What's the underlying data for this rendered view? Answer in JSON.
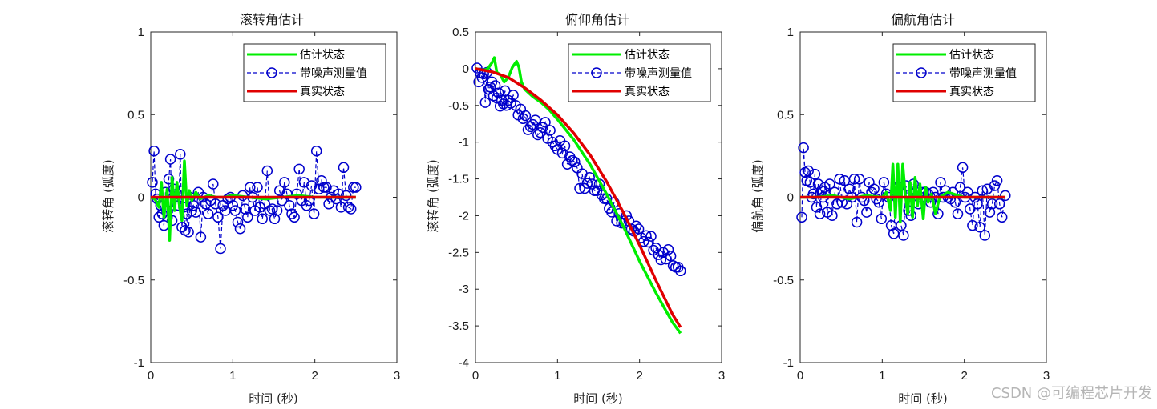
{
  "watermark": "CSDN @可编程芯片开发",
  "colors": {
    "estimate": "#00ee00",
    "measurement": "#0000cc",
    "truth": "#e00000",
    "axis": "#262626"
  },
  "chart_data": [
    {
      "type": "line",
      "title": "滚转角估计",
      "xlabel": "时间 (秒)",
      "ylabel": "滚转角 (弧度)",
      "xlim": [
        0,
        3
      ],
      "ylim": [
        -1,
        1
      ],
      "xticks": [
        0,
        1,
        2,
        3
      ],
      "yticks": [
        -1,
        -0.5,
        0,
        0.5,
        1
      ],
      "ytick_labels": [
        "-1",
        "-0.5",
        "0",
        "0.5",
        "1"
      ],
      "legend": [
        "估计状态",
        "带噪声测量值",
        "真实状态"
      ],
      "series": [
        {
          "name": "估计状态",
          "x": [
            0,
            0.05,
            0.1,
            0.13,
            0.16,
            0.2,
            0.23,
            0.26,
            0.29,
            0.32,
            0.35,
            0.38,
            0.41,
            0.44,
            0.47,
            0.5,
            0.55,
            0.6,
            0.7,
            0.8,
            0.9,
            1.0,
            1.2,
            1.4,
            1.6,
            1.8,
            2.0,
            2.2,
            2.4,
            2.5
          ],
          "values": [
            0,
            -0.01,
            -0.06,
            0.09,
            -0.12,
            0.05,
            -0.26,
            0.12,
            -0.08,
            0.09,
            -0.05,
            -0.14,
            0.22,
            -0.05,
            0.04,
            -0.02,
            0.03,
            -0.01,
            0.01,
            0,
            0,
            0.01,
            0,
            -0.01,
            0,
            0.01,
            0,
            0,
            0,
            0
          ]
        },
        {
          "name": "带噪声测量值",
          "x": [
            0.02,
            0.04,
            0.06,
            0.08,
            0.1,
            0.12,
            0.14,
            0.16,
            0.18,
            0.2,
            0.22,
            0.24,
            0.26,
            0.28,
            0.3,
            0.32,
            0.34,
            0.36,
            0.38,
            0.4,
            0.42,
            0.44,
            0.46,
            0.48,
            0.5,
            0.52,
            0.55,
            0.58,
            0.61,
            0.64,
            0.67,
            0.7,
            0.73,
            0.76,
            0.79,
            0.82,
            0.85,
            0.88,
            0.91,
            0.94,
            0.97,
            1.0,
            1.03,
            1.06,
            1.09,
            1.12,
            1.15,
            1.18,
            1.21,
            1.24,
            1.27,
            1.3,
            1.33,
            1.36,
            1.39,
            1.42,
            1.45,
            1.48,
            1.51,
            1.54,
            1.57,
            1.6,
            1.63,
            1.66,
            1.69,
            1.72,
            1.75,
            1.78,
            1.81,
            1.84,
            1.87,
            1.9,
            1.93,
            1.96,
            1.99,
            2.02,
            2.05,
            2.08,
            2.11,
            2.14,
            2.17,
            2.2,
            2.23,
            2.26,
            2.29,
            2.32,
            2.35,
            2.38,
            2.41,
            2.44,
            2.47,
            2.5
          ],
          "values": [
            0.09,
            0.28,
            0.02,
            -0.01,
            -0.12,
            -0.05,
            -0.1,
            -0.17,
            0.03,
            -0.08,
            0.11,
            0.23,
            -0.14,
            0.05,
            0,
            0.02,
            -0.05,
            0.26,
            -0.18,
            -0.06,
            -0.2,
            -0.1,
            -0.21,
            0.0,
            -0.08,
            -0.05,
            -0.09,
            0.03,
            -0.24,
            0.0,
            -0.04,
            -0.1,
            -0.02,
            0.08,
            -0.04,
            -0.12,
            -0.31,
            -0.05,
            -0.08,
            -0.01,
            0.0,
            -0.05,
            -0.08,
            -0.15,
            -0.19,
            0.01,
            -0.07,
            -0.12,
            0.06,
            0.0,
            -0.08,
            0.06,
            -0.06,
            -0.13,
            -0.04,
            0.16,
            -0.08,
            -0.07,
            -0.13,
            -0.08,
            0.04,
            -0.02,
            0.09,
            0.02,
            -0.05,
            -0.1,
            -0.12,
            0.02,
            0.17,
            -0.02,
            0.09,
            -0.05,
            -0.02,
            0.07,
            -0.1,
            0.28,
            0.05,
            0.1,
            0.06,
            0.06,
            -0.04,
            0.0,
            0.04,
            -0.01,
            0.02,
            -0.06,
            0.18,
            0.01,
            -0.06,
            -0.07,
            0.06,
            0.06
          ]
        },
        {
          "name": "真实状态",
          "x": [
            0,
            2.5
          ],
          "values": [
            0,
            0
          ]
        }
      ]
    },
    {
      "type": "line",
      "title": "俯仰角估计",
      "xlabel": "时间 (秒)",
      "ylabel": "滚转角 (弧度)",
      "xlim": [
        0,
        3
      ],
      "ylim": [
        -4,
        0.5
      ],
      "xticks": [
        0,
        1,
        2,
        3
      ],
      "yticks": [
        -4,
        -3.5,
        -3,
        -2.5,
        -2,
        -1.5,
        -1,
        -0.5,
        0,
        0.5
      ],
      "ytick_labels": [
        "-4",
        "-3.5",
        "-3",
        "-2.5",
        "-2",
        "-1.5",
        "-1",
        "-0.5",
        "0",
        "0.5"
      ],
      "legend": [
        "估计状态",
        "带噪声测量值",
        "真实状态"
      ],
      "series": [
        {
          "name": "估计状态",
          "x": [
            0,
            0.05,
            0.1,
            0.15,
            0.2,
            0.23,
            0.26,
            0.3,
            0.35,
            0.4,
            0.45,
            0.5,
            0.53,
            0.56,
            0.6,
            0.7,
            0.8,
            0.9,
            1.0,
            1.2,
            1.4,
            1.6,
            1.8,
            2.0,
            2.2,
            2.4,
            2.5
          ],
          "values": [
            0,
            -0.01,
            -0.02,
            0.0,
            0.08,
            0.15,
            -0.05,
            -0.08,
            -0.18,
            -0.12,
            0.02,
            0.1,
            0.02,
            -0.18,
            -0.28,
            -0.38,
            -0.46,
            -0.56,
            -0.69,
            -0.97,
            -1.31,
            -1.71,
            -2.14,
            -2.62,
            -3.05,
            -3.45,
            -3.6
          ]
        },
        {
          "name": "带噪声测量值",
          "x": [
            0.02,
            0.04,
            0.06,
            0.08,
            0.1,
            0.12,
            0.14,
            0.16,
            0.18,
            0.2,
            0.22,
            0.24,
            0.26,
            0.28,
            0.3,
            0.32,
            0.34,
            0.36,
            0.38,
            0.4,
            0.43,
            0.46,
            0.49,
            0.52,
            0.55,
            0.58,
            0.61,
            0.64,
            0.67,
            0.7,
            0.73,
            0.76,
            0.79,
            0.82,
            0.85,
            0.88,
            0.91,
            0.94,
            0.97,
            1.0,
            1.03,
            1.06,
            1.09,
            1.12,
            1.15,
            1.18,
            1.21,
            1.24,
            1.27,
            1.3,
            1.33,
            1.36,
            1.39,
            1.42,
            1.45,
            1.48,
            1.51,
            1.54,
            1.57,
            1.6,
            1.63,
            1.66,
            1.69,
            1.72,
            1.75,
            1.78,
            1.81,
            1.84,
            1.87,
            1.9,
            1.93,
            1.96,
            1.99,
            2.02,
            2.05,
            2.08,
            2.11,
            2.14,
            2.17,
            2.2,
            2.23,
            2.26,
            2.29,
            2.32,
            2.35,
            2.38,
            2.41,
            2.44,
            2.47,
            2.5
          ],
          "values": [
            0.01,
            -0.18,
            -0.06,
            -0.12,
            -0.07,
            -0.46,
            -0.05,
            -0.28,
            -0.25,
            -0.18,
            -0.37,
            -0.23,
            -0.4,
            -0.33,
            -0.51,
            -0.43,
            -0.48,
            -0.3,
            -0.5,
            -0.43,
            -0.47,
            -0.36,
            -0.5,
            -0.63,
            -0.55,
            -0.68,
            -0.64,
            -0.83,
            -0.79,
            -0.76,
            -0.7,
            -0.9,
            -0.87,
            -0.8,
            -0.73,
            -0.95,
            -0.84,
            -1.0,
            -1.05,
            -1.1,
            -0.98,
            -1.15,
            -1.05,
            -1.3,
            -1.2,
            -1.25,
            -1.27,
            -1.35,
            -1.63,
            -1.43,
            -1.63,
            -1.56,
            -1.48,
            -1.57,
            -1.66,
            -1.66,
            -1.57,
            -1.72,
            -1.77,
            -1.77,
            -1.9,
            -1.95,
            -1.82,
            -2.07,
            -1.97,
            -2.1,
            -2.1,
            -2.0,
            -2.07,
            -2.18,
            -2.21,
            -2.14,
            -2.18,
            -2.3,
            -2.35,
            -2.27,
            -2.36,
            -2.28,
            -2.47,
            -2.44,
            -2.53,
            -2.6,
            -2.5,
            -2.59,
            -2.46,
            -2.55,
            -2.68,
            -2.7,
            -2.7,
            -2.75
          ]
        },
        {
          "name": "真实状态",
          "x": [
            0,
            0.2,
            0.4,
            0.6,
            0.8,
            1.0,
            1.2,
            1.4,
            1.6,
            1.8,
            2.0,
            2.2,
            2.4,
            2.5
          ],
          "values": [
            0,
            -0.04,
            -0.12,
            -0.26,
            -0.43,
            -0.63,
            -0.88,
            -1.18,
            -1.54,
            -1.95,
            -2.4,
            -2.88,
            -3.34,
            -3.52
          ]
        }
      ]
    },
    {
      "type": "line",
      "title": "偏航角估计",
      "xlabel": "时间 (秒)",
      "ylabel": "偏航角 (弧度)",
      "xlim": [
        0,
        3
      ],
      "ylim": [
        -1,
        1
      ],
      "xticks": [
        0,
        1,
        2,
        3
      ],
      "yticks": [
        -1,
        -0.5,
        0,
        0.5,
        1
      ],
      "ytick_labels": [
        "-1",
        "-0.5",
        "0",
        "0.5",
        "1"
      ],
      "legend": [
        "估计状态",
        "带噪声测量值",
        "真实状态"
      ],
      "series": [
        {
          "name": "估计状态",
          "x": [
            0,
            0.2,
            0.4,
            0.6,
            0.8,
            1.0,
            1.05,
            1.1,
            1.13,
            1.16,
            1.19,
            1.22,
            1.25,
            1.28,
            1.31,
            1.34,
            1.37,
            1.4,
            1.43,
            1.46,
            1.5,
            1.53,
            1.56,
            1.6,
            1.65,
            1.7,
            1.8,
            2.0,
            2.2,
            2.4,
            2.5
          ],
          "values": [
            0,
            0,
            0.01,
            -0.01,
            0.01,
            0,
            0.03,
            -0.08,
            0.2,
            -0.12,
            0.2,
            -0.15,
            0.2,
            0.02,
            -0.1,
            0.09,
            -0.12,
            0.12,
            -0.05,
            0.08,
            -0.13,
            0.06,
            -0.03,
            0.02,
            -0.1,
            0.0,
            0.03,
            0.0,
            0.0,
            0.0,
            0.0
          ]
        },
        {
          "name": "带噪声测量值",
          "x": [
            0.02,
            0.04,
            0.06,
            0.08,
            0.1,
            0.12,
            0.14,
            0.16,
            0.18,
            0.2,
            0.22,
            0.24,
            0.26,
            0.28,
            0.3,
            0.33,
            0.36,
            0.39,
            0.42,
            0.45,
            0.48,
            0.51,
            0.54,
            0.57,
            0.6,
            0.63,
            0.66,
            0.69,
            0.72,
            0.75,
            0.78,
            0.81,
            0.84,
            0.87,
            0.9,
            0.93,
            0.96,
            0.99,
            1.02,
            1.05,
            1.08,
            1.11,
            1.14,
            1.17,
            1.2,
            1.23,
            1.26,
            1.29,
            1.32,
            1.35,
            1.38,
            1.41,
            1.44,
            1.47,
            1.5,
            1.53,
            1.56,
            1.59,
            1.62,
            1.65,
            1.68,
            1.71,
            1.74,
            1.77,
            1.8,
            1.83,
            1.86,
            1.89,
            1.92,
            1.95,
            1.98,
            2.01,
            2.04,
            2.07,
            2.1,
            2.13,
            2.16,
            2.19,
            2.22,
            2.25,
            2.28,
            2.31,
            2.34,
            2.37,
            2.4,
            2.43,
            2.46,
            2.5
          ],
          "values": [
            -0.12,
            0.3,
            0.15,
            0.1,
            0.16,
            0.09,
            0.0,
            0.02,
            0.14,
            -0.06,
            0.08,
            -0.1,
            0.04,
            0.0,
            0.06,
            -0.09,
            0.08,
            -0.11,
            0.03,
            -0.04,
            0.11,
            -0.03,
            0.1,
            -0.04,
            0.05,
            0.0,
            0.11,
            -0.15,
            0.11,
            0.0,
            -0.02,
            -0.09,
            0.09,
            0.03,
            0.05,
            -0.01,
            -0.03,
            -0.13,
            0.09,
            0.02,
            0.0,
            -0.17,
            -0.22,
            0.06,
            0.06,
            -0.17,
            -0.23,
            0.07,
            -0.08,
            -0.11,
            0.08,
            0.03,
            -0.04,
            0.0,
            0.03,
            0.03,
            0.02,
            -0.03,
            0.03,
            0.0,
            -0.1,
            0.09,
            0.0,
            0.04,
            0.0,
            -0.01,
            0.03,
            -0.03,
            -0.1,
            0.06,
            0.18,
            0.0,
            0.03,
            -0.07,
            -0.17,
            0.0,
            -0.04,
            -0.18,
            0.04,
            -0.23,
            0.05,
            -0.09,
            -0.04,
            0.07,
            0.1,
            -0.04,
            -0.12,
            0.01
          ]
        },
        {
          "name": "真实状态",
          "x": [
            0,
            2.5
          ],
          "values": [
            0,
            0
          ]
        }
      ]
    }
  ]
}
